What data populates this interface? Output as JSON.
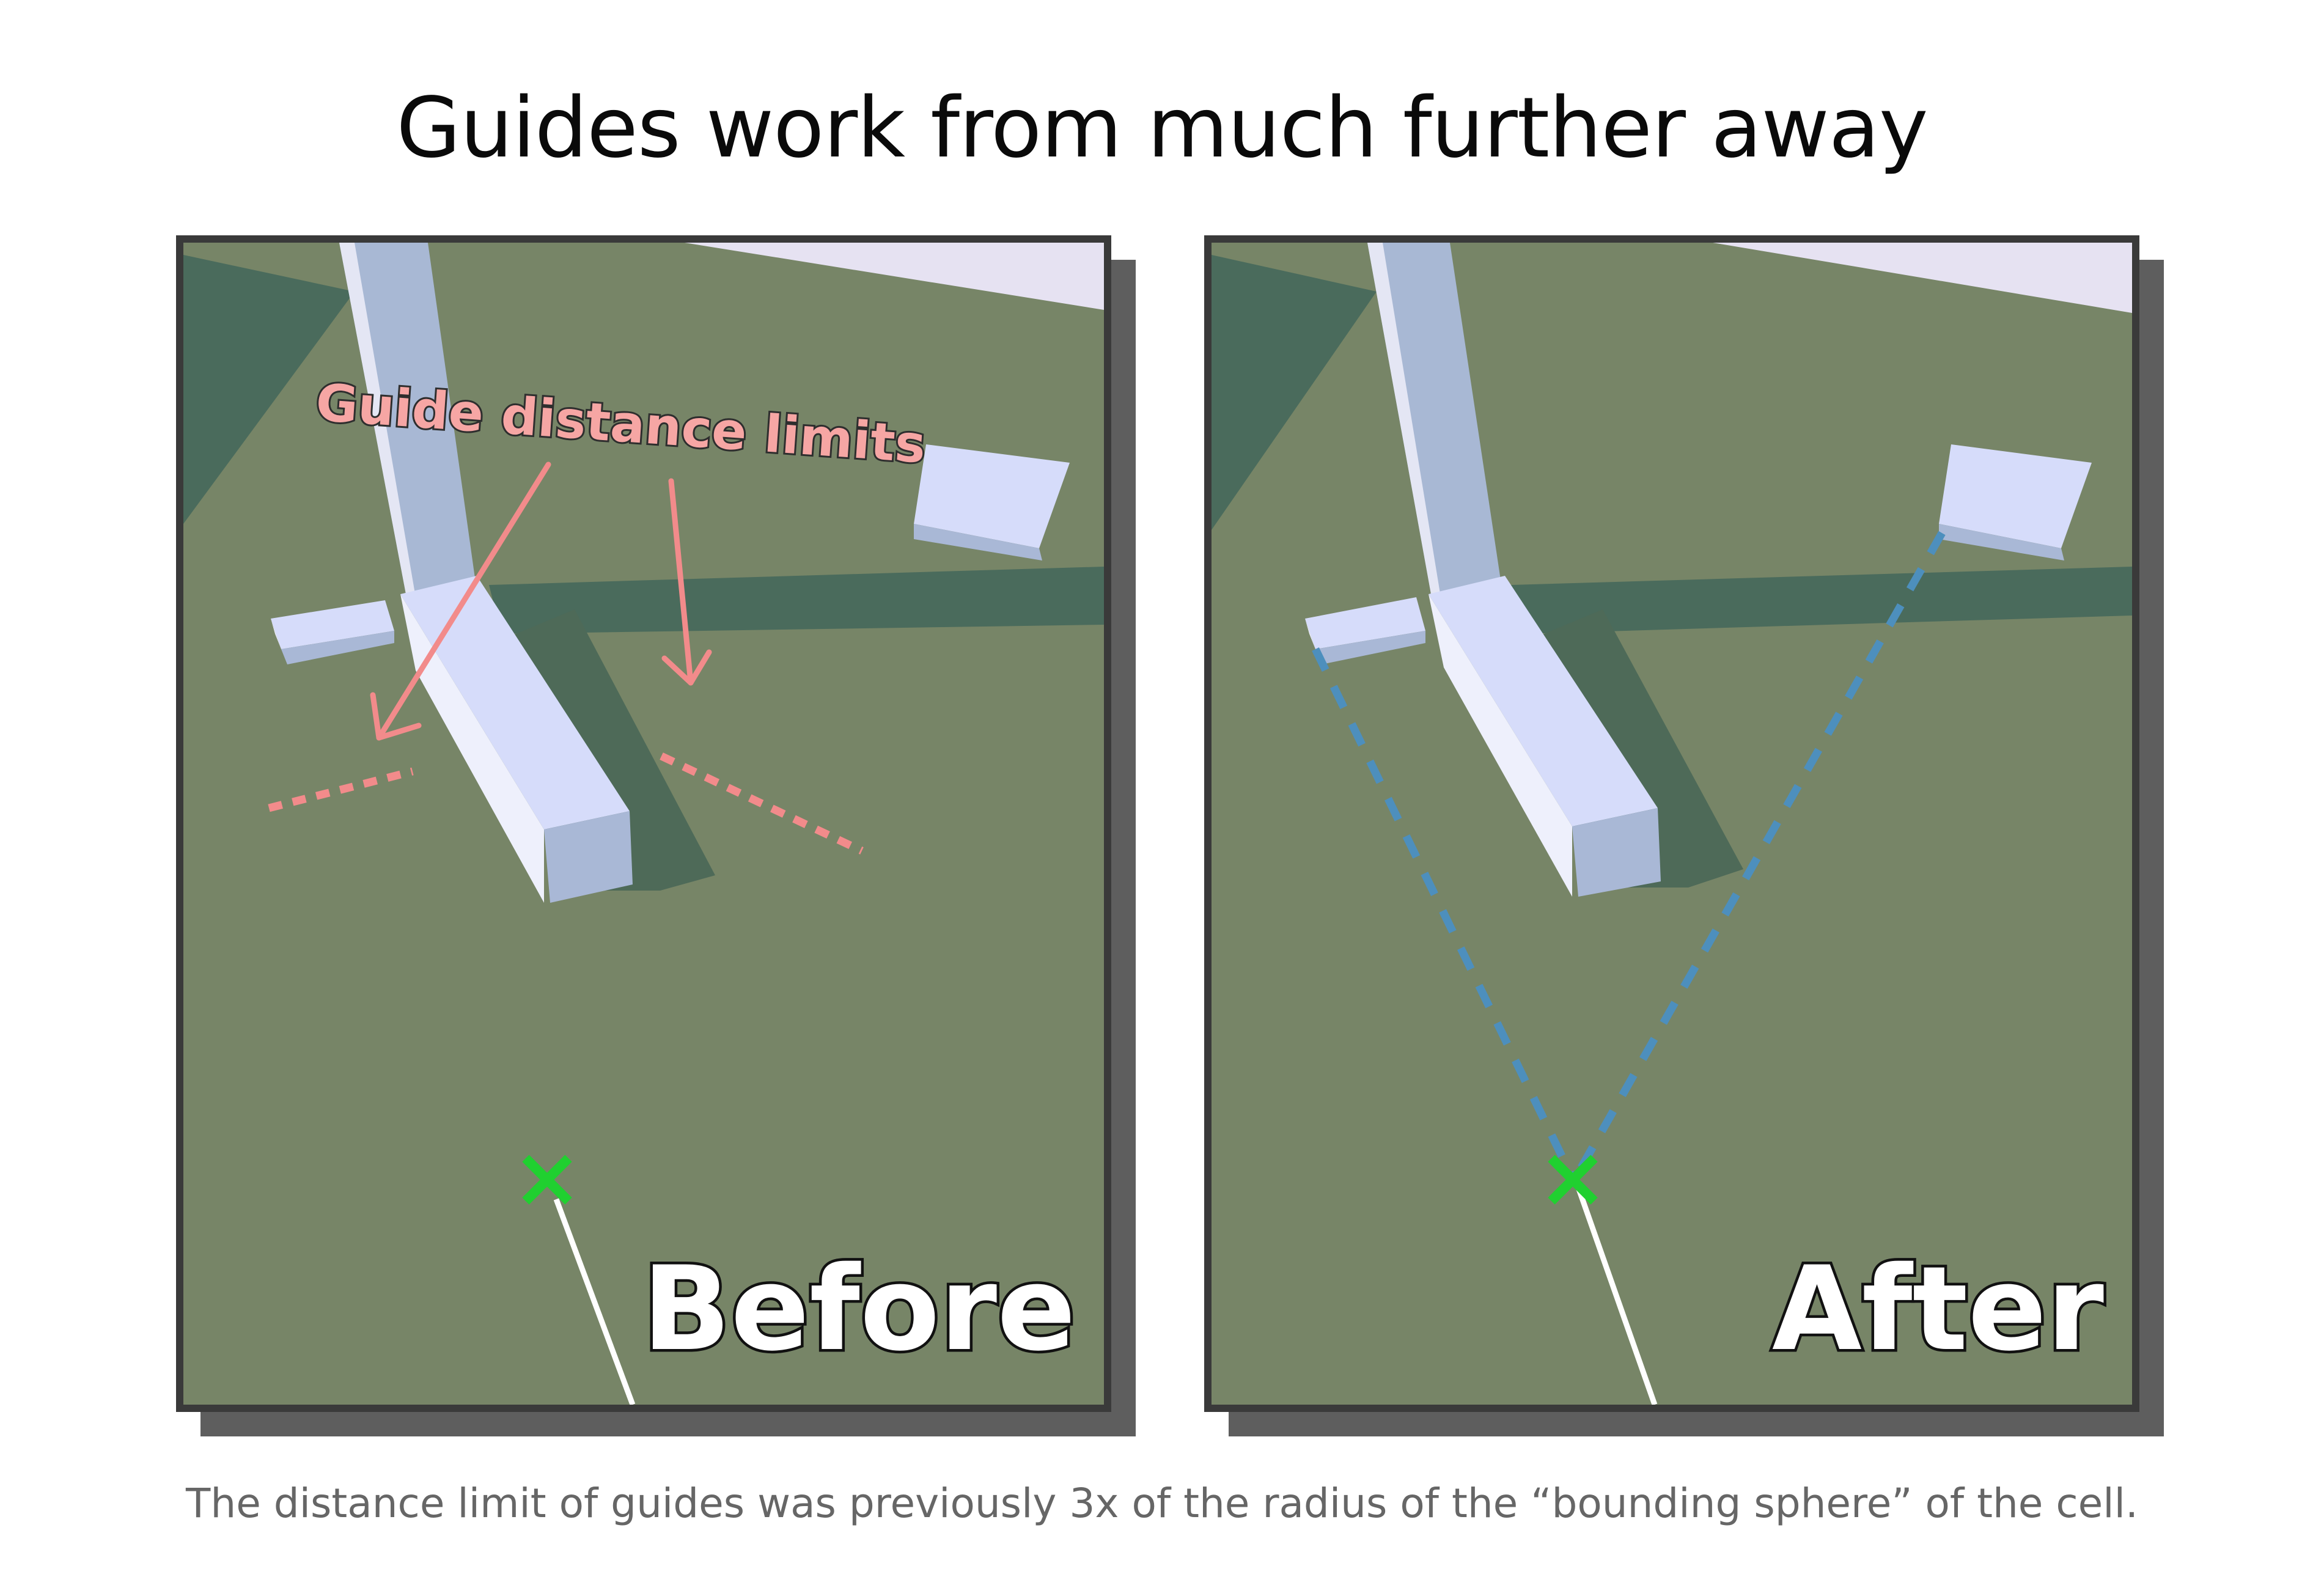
{
  "title": "Guides work from much further away",
  "caption": "The distance limit of guides was previously 3x of the radius of the “bounding sphere” of the cell.",
  "panels": {
    "before": {
      "label": "Before",
      "annotation": "Guide distance limits"
    },
    "after": {
      "label": "After"
    }
  },
  "colors": {
    "ground": "#778567",
    "shadow": "#4a6b5c",
    "block": "#d6dcfa",
    "limit_marker": "#f28b8b",
    "guide_line": "#4d8fbd",
    "cursor": "#20d030"
  },
  "icons": {
    "cursor": "cross-icon"
  }
}
